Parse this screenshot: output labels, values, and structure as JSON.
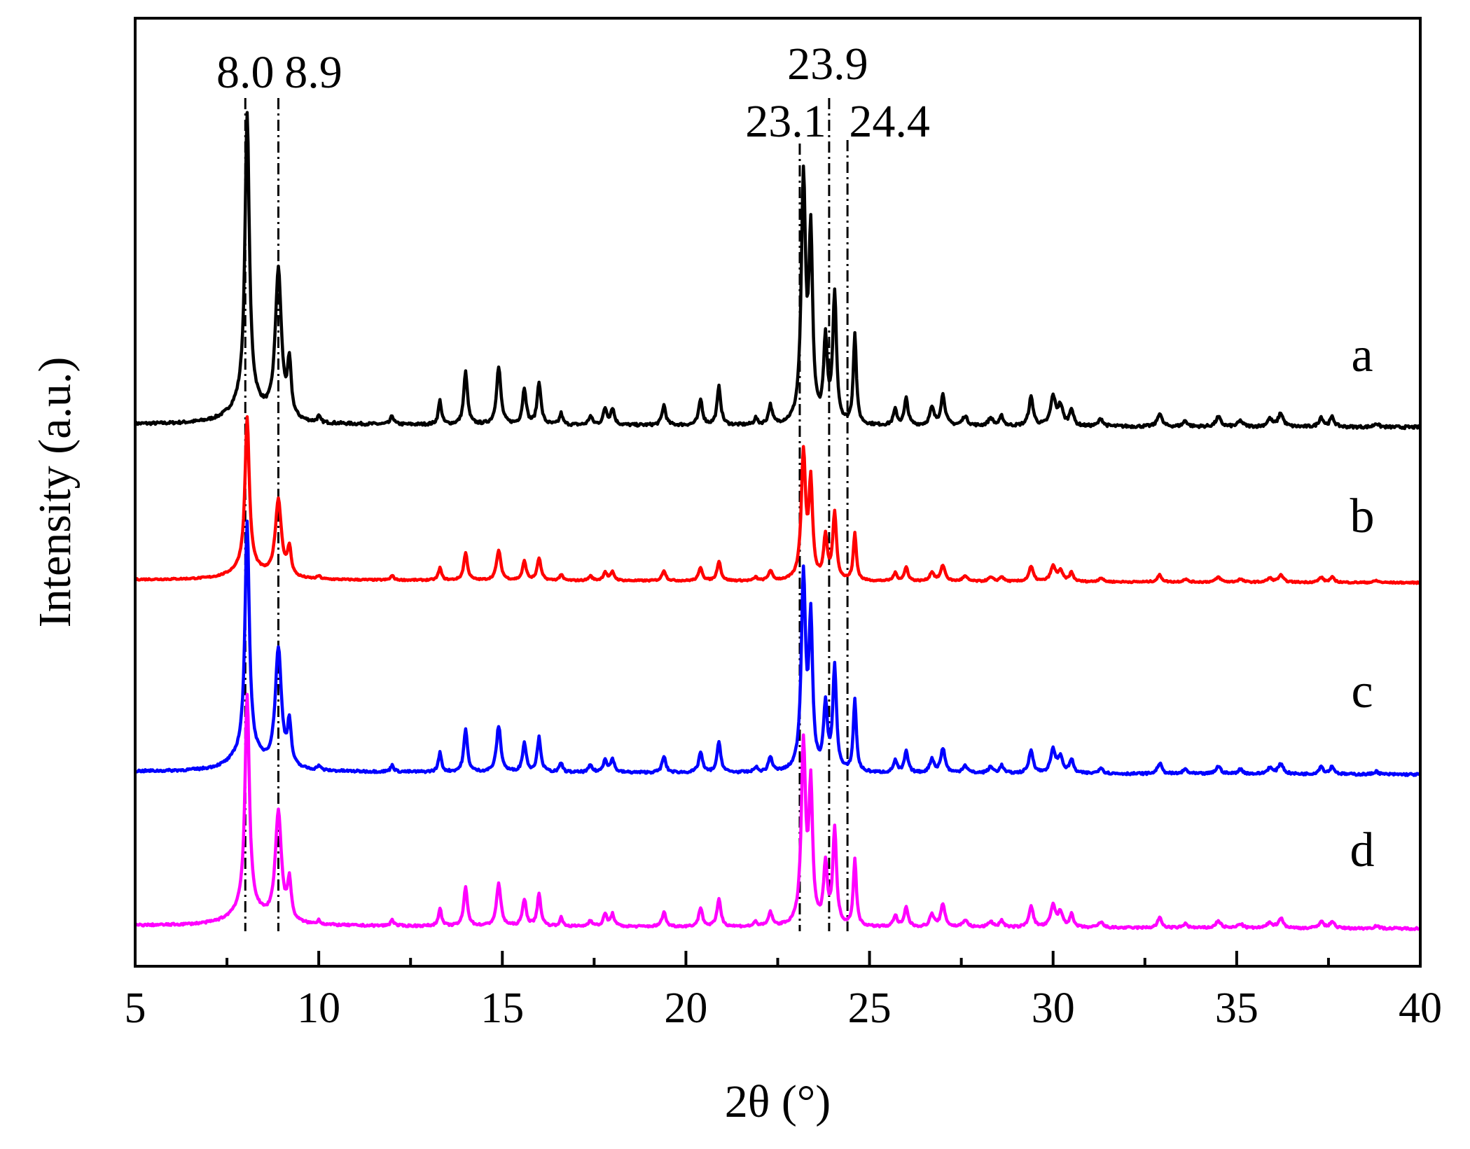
{
  "chart_data": {
    "type": "line",
    "xlabel": "2θ  (°)",
    "ylabel": "Intensity  (a.u.)",
    "xlim": [
      5,
      40
    ],
    "xticks": [
      5,
      10,
      15,
      20,
      25,
      30,
      35,
      40
    ],
    "xtick_labels": [
      "5",
      "10",
      "15",
      "20",
      "25",
      "30",
      "35",
      "40"
    ],
    "y_ticks_shown": false,
    "grid": false,
    "reference_lines": [
      {
        "x": 8.0,
        "label": "8.0"
      },
      {
        "x": 8.9,
        "label": "8.9"
      },
      {
        "x": 23.1,
        "label": "23.1"
      },
      {
        "x": 23.9,
        "label": "23.9"
      },
      {
        "x": 24.4,
        "label": "24.4"
      }
    ],
    "peak_shape": {
      "positions": [
        8.05,
        8.9,
        9.2,
        10.0,
        12.0,
        13.3,
        14.0,
        14.9,
        15.6,
        16.0,
        16.6,
        17.4,
        17.8,
        18.0,
        19.4,
        20.4,
        20.9,
        21.9,
        22.3,
        23.2,
        23.4,
        23.8,
        24.05,
        24.6,
        25.7,
        26.0,
        26.7,
        27.0,
        27.6,
        28.3,
        28.6,
        29.4,
        30.0,
        30.2,
        30.5,
        31.3,
        32.9,
        33.6,
        34.5,
        35.1,
        35.9,
        36.2,
        37.3,
        37.6,
        38.8
      ],
      "reference_heights_a": [
        300,
        155,
        55,
        6,
        9,
        25,
        55,
        60,
        38,
        45,
        12,
        9,
        17,
        17,
        21,
        27,
        40,
        7,
        20,
        255,
        190,
        85,
        135,
        95,
        16,
        28,
        18,
        32,
        10,
        8,
        10,
        30,
        30,
        20,
        18,
        8,
        14,
        6,
        10,
        6,
        8,
        14,
        10,
        10,
        4
      ],
      "widths": [
        0.07,
        0.1,
        0.06,
        0.05,
        0.05,
        0.05,
        0.06,
        0.07,
        0.06,
        0.06,
        0.05,
        0.06,
        0.06,
        0.06,
        0.06,
        0.06,
        0.06,
        0.05,
        0.06,
        0.07,
        0.06,
        0.06,
        0.06,
        0.05,
        0.06,
        0.06,
        0.07,
        0.07,
        0.08,
        0.08,
        0.06,
        0.07,
        0.08,
        0.08,
        0.06,
        0.07,
        0.07,
        0.07,
        0.08,
        0.08,
        0.08,
        0.08,
        0.07,
        0.07,
        0.07
      ],
      "broad_base": {
        "center": 8.05,
        "height": 26,
        "width": 0.45
      }
    },
    "series": [
      {
        "name": "a",
        "color": "#000000",
        "baseline": 0.0,
        "scale": 1.0
      },
      {
        "name": "b",
        "color": "#ff0000",
        "baseline": 0.0,
        "scale": 0.52
      },
      {
        "name": "c",
        "color": "#0000ff",
        "baseline": 0.0,
        "scale": 0.8
      },
      {
        "name": "d",
        "color": "#ff00ff",
        "baseline": 0.0,
        "scale": 0.74
      }
    ]
  }
}
